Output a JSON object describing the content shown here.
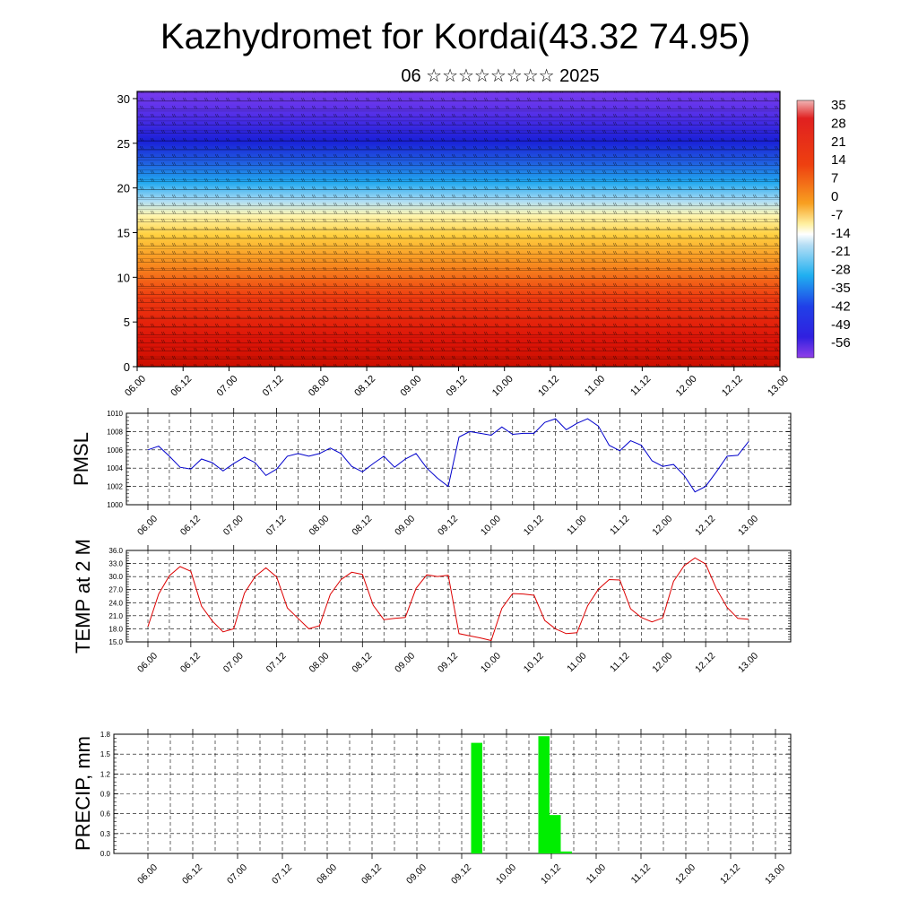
{
  "header": {
    "title": "Kazhydromet for Kordai(43.32 74.95)",
    "subtitle": "06 ☆☆☆☆☆☆☆☆ 2025"
  },
  "colors": {
    "pmsl_line": "#0000cc",
    "temp_line": "#dd0000",
    "precip_bar": "#00ee00"
  },
  "chart_data": [
    {
      "type": "heatmap",
      "name": "cross-section",
      "x_tick_labels": [
        "06.00",
        "06.12",
        "07.00",
        "07.12",
        "08.00",
        "08.12",
        "09.00",
        "09.12",
        "10.00",
        "10.12",
        "11.00",
        "11.12",
        "12.00",
        "12.12",
        "13.00"
      ],
      "y_ticks": [
        0,
        5,
        10,
        15,
        20,
        25,
        30
      ],
      "ylim": [
        0,
        30.8
      ],
      "colorbar_labels": [
        "35",
        "28",
        "21",
        "14",
        "7",
        "0",
        "-7",
        "-14",
        "-21",
        "-28",
        "-35",
        "-42",
        "-49",
        "-56"
      ],
      "colorbar_range": [
        -60,
        39
      ]
    },
    {
      "type": "line",
      "ylabel": "PMSL",
      "x_tick_labels": [
        "06.00",
        "06.12",
        "07.00",
        "07.12",
        "08.00",
        "08.12",
        "09.00",
        "09.12",
        "10.00",
        "10.12",
        "11.00",
        "11.12",
        "12.00",
        "12.12",
        "13.00"
      ],
      "y_ticks": [
        "1000",
        "1002",
        "1004",
        "1006",
        "1008",
        "1010"
      ],
      "ylim": [
        1000,
        1010
      ],
      "x": [
        0,
        3,
        6,
        9,
        12,
        15,
        18,
        21,
        24,
        27,
        30,
        33,
        36,
        39,
        42,
        45,
        48,
        51,
        54,
        57,
        60,
        63,
        66,
        69,
        72,
        75,
        78,
        81,
        84,
        87,
        90,
        93,
        96,
        99,
        102,
        105,
        108,
        111,
        114,
        117,
        120,
        123,
        126,
        129,
        132,
        135,
        138,
        141,
        144,
        147,
        150,
        153,
        156,
        159,
        162,
        165,
        168
      ],
      "values": [
        1006.0,
        1006.4,
        1005.3,
        1004.1,
        1003.9,
        1005.0,
        1004.6,
        1003.7,
        1004.5,
        1005.2,
        1004.6,
        1003.2,
        1003.9,
        1005.3,
        1005.6,
        1005.3,
        1005.6,
        1006.2,
        1005.6,
        1004.2,
        1003.6,
        1004.5,
        1005.3,
        1004.1,
        1005.0,
        1005.6,
        1004.0,
        1002.9,
        1002.0,
        1007.4,
        1008.0,
        1007.8,
        1007.6,
        1008.5,
        1007.7,
        1007.8,
        1007.8,
        1009.0,
        1009.4,
        1008.2,
        1008.9,
        1009.4,
        1008.6,
        1006.5,
        1005.9,
        1007.0,
        1006.5,
        1004.8,
        1004.2,
        1004.4,
        1003.2,
        1001.4,
        1002.0,
        1003.6,
        1005.3,
        1005.4,
        1006.9
      ]
    },
    {
      "type": "line",
      "ylabel": "TEMP at 2 M",
      "x_tick_labels": [
        "06.00",
        "06.12",
        "07.00",
        "07.12",
        "08.00",
        "08.12",
        "09.00",
        "09.12",
        "10.00",
        "10.12",
        "11.00",
        "11.12",
        "12.00",
        "12.12",
        "13.00"
      ],
      "y_ticks": [
        "15.0",
        "18.0",
        "21.0",
        "24.0",
        "27.0",
        "30.0",
        "33.0",
        "36.0"
      ],
      "ylim": [
        15,
        36
      ],
      "x": [
        0,
        3,
        6,
        9,
        12,
        15,
        18,
        21,
        24,
        27,
        30,
        33,
        36,
        39,
        42,
        45,
        48,
        51,
        54,
        57,
        60,
        63,
        66,
        69,
        72,
        75,
        78,
        81,
        84,
        87,
        90,
        93,
        96,
        99,
        102,
        105,
        108,
        111,
        114,
        117,
        120,
        123,
        126,
        129,
        132,
        135,
        138,
        141,
        144,
        147,
        150,
        153,
        156,
        159,
        162,
        165,
        168
      ],
      "values": [
        18.5,
        26.0,
        30.2,
        32.3,
        31.2,
        23.2,
        19.8,
        17.3,
        18.0,
        26.2,
        30.0,
        32.0,
        29.9,
        22.8,
        20.4,
        18.0,
        18.7,
        25.9,
        29.3,
        31.0,
        30.5,
        23.4,
        20.1,
        20.4,
        20.6,
        27.3,
        30.4,
        30.0,
        30.3,
        16.9,
        16.4,
        15.9,
        15.3,
        22.7,
        26.1,
        26.0,
        25.7,
        19.9,
        18.0,
        16.9,
        17.1,
        23.3,
        27.1,
        29.3,
        29.2,
        22.6,
        20.6,
        19.6,
        20.5,
        28.9,
        32.5,
        34.3,
        32.9,
        27.2,
        22.9,
        20.4,
        20.2
      ]
    },
    {
      "type": "bar",
      "ylabel": "PRECIP, mm",
      "x_tick_labels": [
        "06.00",
        "06.12",
        "07.00",
        "07.12",
        "08.00",
        "08.12",
        "09.00",
        "09.12",
        "10.00",
        "10.12",
        "11.00",
        "11.12",
        "12.00",
        "12.12",
        "13.00"
      ],
      "y_ticks": [
        "0.0",
        "0.3",
        "0.6",
        "0.9",
        "1.2",
        "1.5",
        "1.8"
      ],
      "ylim": [
        0,
        1.8
      ],
      "x": [
        87,
        105,
        108,
        111
      ],
      "values": [
        1.67,
        1.77,
        0.58,
        0.03
      ]
    }
  ]
}
